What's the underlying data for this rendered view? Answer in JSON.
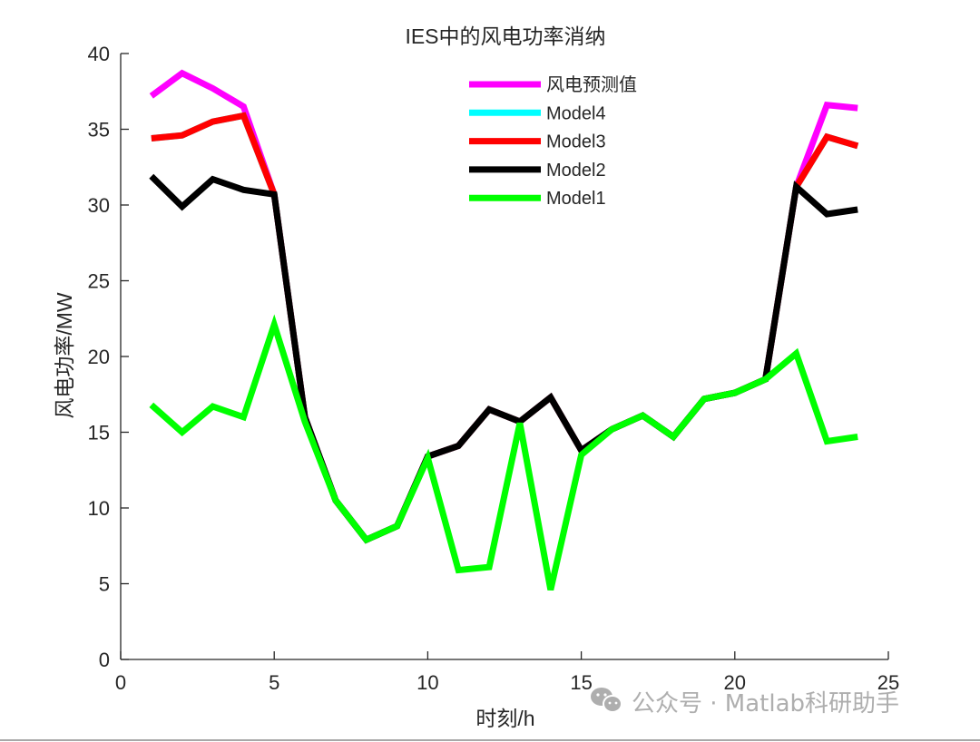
{
  "chart_data": {
    "type": "line",
    "title": "IES中的风电功率消纳",
    "xlabel": "时刻/h",
    "ylabel": "风电功率/MW",
    "xlim": [
      0,
      25
    ],
    "ylim": [
      0,
      40
    ],
    "xticks": [
      0,
      5,
      10,
      15,
      20,
      25
    ],
    "yticks": [
      0,
      5,
      10,
      15,
      20,
      25,
      30,
      35,
      40
    ],
    "grid": false,
    "legend_position": "upper center (inside)",
    "x": [
      1,
      2,
      3,
      4,
      5,
      6,
      7,
      8,
      9,
      10,
      11,
      12,
      13,
      14,
      15,
      16,
      17,
      18,
      19,
      20,
      21,
      22,
      23,
      24
    ],
    "series": [
      {
        "name": "风电预测值",
        "color": "#ff00ff",
        "values": [
          37.2,
          38.7,
          37.7,
          36.5,
          30.7,
          16.0,
          10.5,
          7.9,
          8.8,
          13.4,
          14.1,
          16.5,
          15.7,
          17.3,
          13.8,
          15.2,
          16.1,
          14.7,
          17.2,
          17.6,
          18.5,
          31.2,
          36.6,
          36.4
        ]
      },
      {
        "name": "Model4",
        "color": "#00ffff",
        "values": [
          34.4,
          34.6,
          35.5,
          35.9,
          30.7,
          16.0,
          10.5,
          7.9,
          8.8,
          13.4,
          14.1,
          16.5,
          15.7,
          17.3,
          13.8,
          15.2,
          16.1,
          14.7,
          17.2,
          17.6,
          18.5,
          31.2,
          34.5,
          33.9
        ]
      },
      {
        "name": "Model3",
        "color": "#ff0000",
        "values": [
          34.4,
          34.6,
          35.5,
          35.9,
          30.7,
          16.0,
          10.5,
          7.9,
          8.8,
          13.4,
          14.1,
          16.5,
          15.7,
          17.3,
          13.8,
          15.2,
          16.1,
          14.7,
          17.2,
          17.6,
          18.5,
          31.2,
          34.5,
          33.9
        ]
      },
      {
        "name": "Model2",
        "color": "#000000",
        "values": [
          31.9,
          29.9,
          31.7,
          31.0,
          30.7,
          16.0,
          10.5,
          7.9,
          8.8,
          13.4,
          14.1,
          16.5,
          15.7,
          17.3,
          13.8,
          15.2,
          16.1,
          14.7,
          17.2,
          17.6,
          18.5,
          31.2,
          29.4,
          29.7
        ]
      },
      {
        "name": "Model1",
        "color": "#00ff00",
        "values": [
          16.8,
          15.0,
          16.7,
          16.0,
          22.1,
          15.7,
          10.5,
          7.9,
          8.8,
          13.3,
          5.9,
          6.1,
          15.6,
          4.6,
          13.5,
          15.2,
          16.1,
          14.7,
          17.2,
          17.6,
          18.5,
          20.2,
          14.4,
          14.7
        ]
      }
    ],
    "draw_order": [
      "风电预测值",
      "Model4",
      "Model3",
      "Model2",
      "Model1"
    ]
  },
  "watermark": {
    "icon": "wechat-icon",
    "text": "公众号 · Matlab科研助手"
  }
}
